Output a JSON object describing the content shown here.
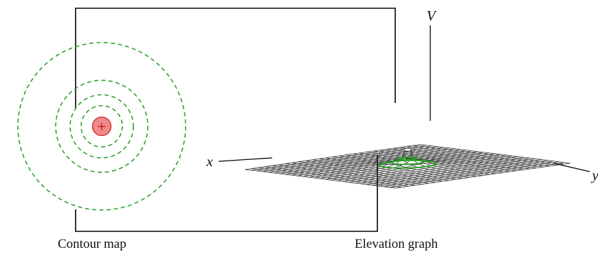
{
  "captions": {
    "contour": "Contour map",
    "elevation": "Elevation graph"
  },
  "axes": {
    "x": "x",
    "y": "y",
    "v": "V"
  },
  "charge": {
    "sign": "+",
    "fill_color": "#f08a8a",
    "stroke_color": "#cc2222"
  },
  "colors": {
    "equipotential": "#2ca02c",
    "mesh": "#222222",
    "frame": "#000000"
  },
  "contour_map": {
    "ring_count": 4,
    "line_style": "dashed"
  },
  "elevation_graph": {
    "surface": "potential of a point charge",
    "highlighted_levels": 3
  }
}
